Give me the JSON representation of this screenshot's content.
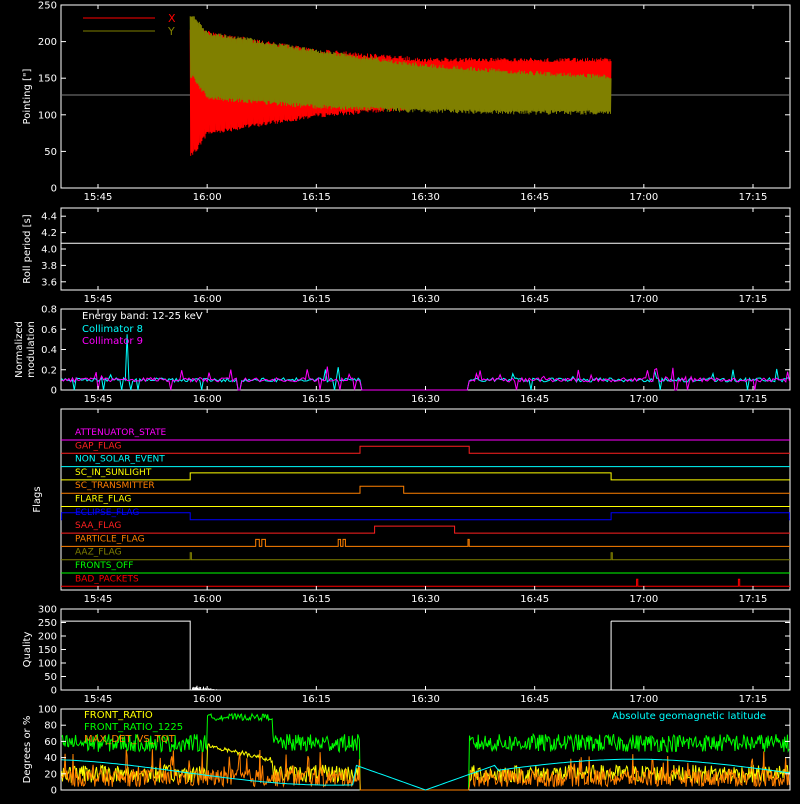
{
  "chart_data": [
    {
      "type": "line",
      "panel": "pointing",
      "ylabel": "Pointing [\"]",
      "ylim": [
        0,
        250
      ],
      "yticks": [
        "0",
        "50",
        "100",
        "150",
        "200",
        "250"
      ],
      "xticks": [
        "15:45",
        "16:00",
        "16:15",
        "16:30",
        "16:45",
        "17:00",
        "17:15"
      ],
      "series": [
        {
          "name": "X",
          "color": "#ff0000",
          "baseline": 127,
          "wobble_start": "15:57:40",
          "wobble_end": "16:55:30",
          "points": [
            [
              "15:57:40",
              125
            ],
            [
              "15:58",
              40
            ],
            [
              "16:00",
              105
            ],
            [
              "16:15",
              115
            ],
            [
              "16:30",
              125
            ],
            [
              "16:45",
              135
            ],
            [
              "16:55",
              150
            ]
          ],
          "upper_envelope": [
            [
              "15:58",
              220
            ],
            [
              "16:00",
              215
            ],
            [
              "16:15",
              190
            ],
            [
              "16:30",
              178
            ],
            [
              "16:45",
              178
            ],
            [
              "16:55",
              178
            ]
          ],
          "lower_envelope": [
            [
              "15:58",
              42
            ],
            [
              "16:00",
              72
            ],
            [
              "16:15",
              96
            ],
            [
              "16:30",
              108
            ],
            [
              "16:45",
              120
            ],
            [
              "16:55",
              125
            ]
          ]
        },
        {
          "name": "Y",
          "color": "#808000",
          "baseline": 127,
          "wobble_start": "15:57:40",
          "wobble_end": "16:55:30",
          "upper_envelope": [
            [
              "15:58",
              240
            ],
            [
              "16:00",
              215
            ],
            [
              "16:15",
              190
            ],
            [
              "16:30",
              170
            ],
            [
              "16:45",
              160
            ],
            [
              "16:55",
              155
            ]
          ],
          "lower_envelope": [
            [
              "15:58",
              150
            ],
            [
              "16:00",
              120
            ],
            [
              "16:15",
              108
            ],
            [
              "16:30",
              102
            ],
            [
              "16:45",
              100
            ],
            [
              "16:55",
              100
            ]
          ]
        }
      ]
    },
    {
      "type": "line",
      "panel": "roll_period",
      "ylabel": "Roll period [s]",
      "ylim": [
        3.5,
        4.5
      ],
      "yticks": [
        "3.6",
        "3.8",
        "4.0",
        "4.2",
        "4.4"
      ],
      "xticks": [
        "15:45",
        "16:00",
        "16:15",
        "16:30",
        "16:45",
        "17:00",
        "17:15"
      ],
      "series": [
        {
          "name": "",
          "color": "#ffffff",
          "constant": 4.07
        }
      ]
    },
    {
      "type": "line",
      "panel": "modulation",
      "ylabel": "Normalized modulation",
      "ylim": [
        0,
        0.8
      ],
      "yticks": [
        "0",
        "0.2",
        "0.4",
        "0.6",
        "0.8"
      ],
      "xticks": [
        "15:45",
        "16:00",
        "16:15",
        "16:30",
        "16:45",
        "17:00",
        "17:15"
      ],
      "annotation": "Energy band: 12-25 keV",
      "series": [
        {
          "name": "Collimator 8",
          "color": "#00ffff",
          "level": 0.1,
          "gap": [
            "16:21",
            "16:36"
          ]
        },
        {
          "name": "Collimator 9",
          "color": "#ff00ff",
          "level": 0.1,
          "gap": [
            "16:21",
            "16:36"
          ]
        }
      ]
    },
    {
      "type": "line",
      "panel": "flags",
      "ylabel": "Flags",
      "xticks": [
        "15:45",
        "16:00",
        "16:15",
        "16:30",
        "16:45",
        "17:00",
        "17:15"
      ],
      "series": [
        {
          "name": "ATTENUATOR_STATE",
          "color": "#ff00ff",
          "on": []
        },
        {
          "name": "GAP_FLAG",
          "color": "#ff2020",
          "on": [
            [
              "16:21",
              "16:36"
            ]
          ]
        },
        {
          "name": "NON_SOLAR_EVENT",
          "color": "#00ffff",
          "on": []
        },
        {
          "name": "SC_IN_SUNLIGHT",
          "color": "#ffff00",
          "on": [
            [
              "15:57:40",
              "16:55:30"
            ]
          ]
        },
        {
          "name": "SC_TRANSMITTER",
          "color": "#ff8000",
          "on": [
            [
              "16:21",
              "16:27"
            ]
          ]
        },
        {
          "name": "FLARE_FLAG",
          "color": "#ffff00",
          "on": []
        },
        {
          "name": "ECLIPSE_FLAG",
          "color": "#0000ff",
          "on": [
            [
              "15:40",
              "15:57:40"
            ],
            [
              "16:55:30",
              "17:20"
            ]
          ]
        },
        {
          "name": "SAA_FLAG",
          "color": "#ff2020",
          "on": [
            [
              "16:23",
              "16:34"
            ]
          ]
        },
        {
          "name": "PARTICLE_FLAG",
          "color": "#ff8000",
          "on": [
            [
              "16:06:40",
              "16:07:10"
            ],
            [
              "16:07:30",
              "16:08"
            ],
            [
              "16:18",
              "16:18:20"
            ],
            [
              "16:18:40",
              "16:19"
            ],
            [
              "16:35:50",
              "16:36"
            ]
          ]
        },
        {
          "name": "AAZ_FLAG",
          "color": "#808000",
          "on": [
            [
              "15:57:40",
              "15:57:50"
            ],
            [
              "16:55:30",
              "16:55:40"
            ]
          ]
        },
        {
          "name": "FRONTS_OFF",
          "color": "#00ff00",
          "on": []
        },
        {
          "name": "BAD_PACKETS",
          "color": "#ff0000",
          "on": [
            [
              "16:59",
              "16:59:10"
            ],
            [
              "17:13",
              "17:13:10"
            ]
          ]
        }
      ]
    },
    {
      "type": "line",
      "panel": "quality",
      "ylabel": "Quality",
      "ylim": [
        0,
        300
      ],
      "yticks": [
        "0",
        "50",
        "100",
        "150",
        "200",
        "250",
        "300"
      ],
      "xticks": [
        "15:45",
        "16:00",
        "16:15",
        "16:30",
        "16:45",
        "17:00",
        "17:15"
      ],
      "series": [
        {
          "name": "",
          "color": "#ffffff",
          "level": 255,
          "from_to": [
            [
              "15:40",
              "15:57:40"
            ],
            [
              "16:55:30",
              "17:20"
            ]
          ]
        }
      ]
    },
    {
      "type": "line",
      "panel": "ratios",
      "ylabel": "Degrees or %",
      "ylim": [
        0,
        100
      ],
      "yticks": [
        "0",
        "20",
        "40",
        "60",
        "80",
        "100"
      ],
      "right_annotation": "Absolute geomagnetic latitude",
      "series": [
        {
          "name": "FRONT_RATIO",
          "color": "#ffff00",
          "level": 20
        },
        {
          "name": "FRONT_RATIO_1225",
          "color": "#00ff00",
          "level": 58
        },
        {
          "name": "MAX_DET_VS_TOT",
          "color": "#ff8000",
          "level": 15
        },
        {
          "name": "Absolute geomagnetic latitude",
          "color": "#00ffff"
        }
      ]
    }
  ]
}
